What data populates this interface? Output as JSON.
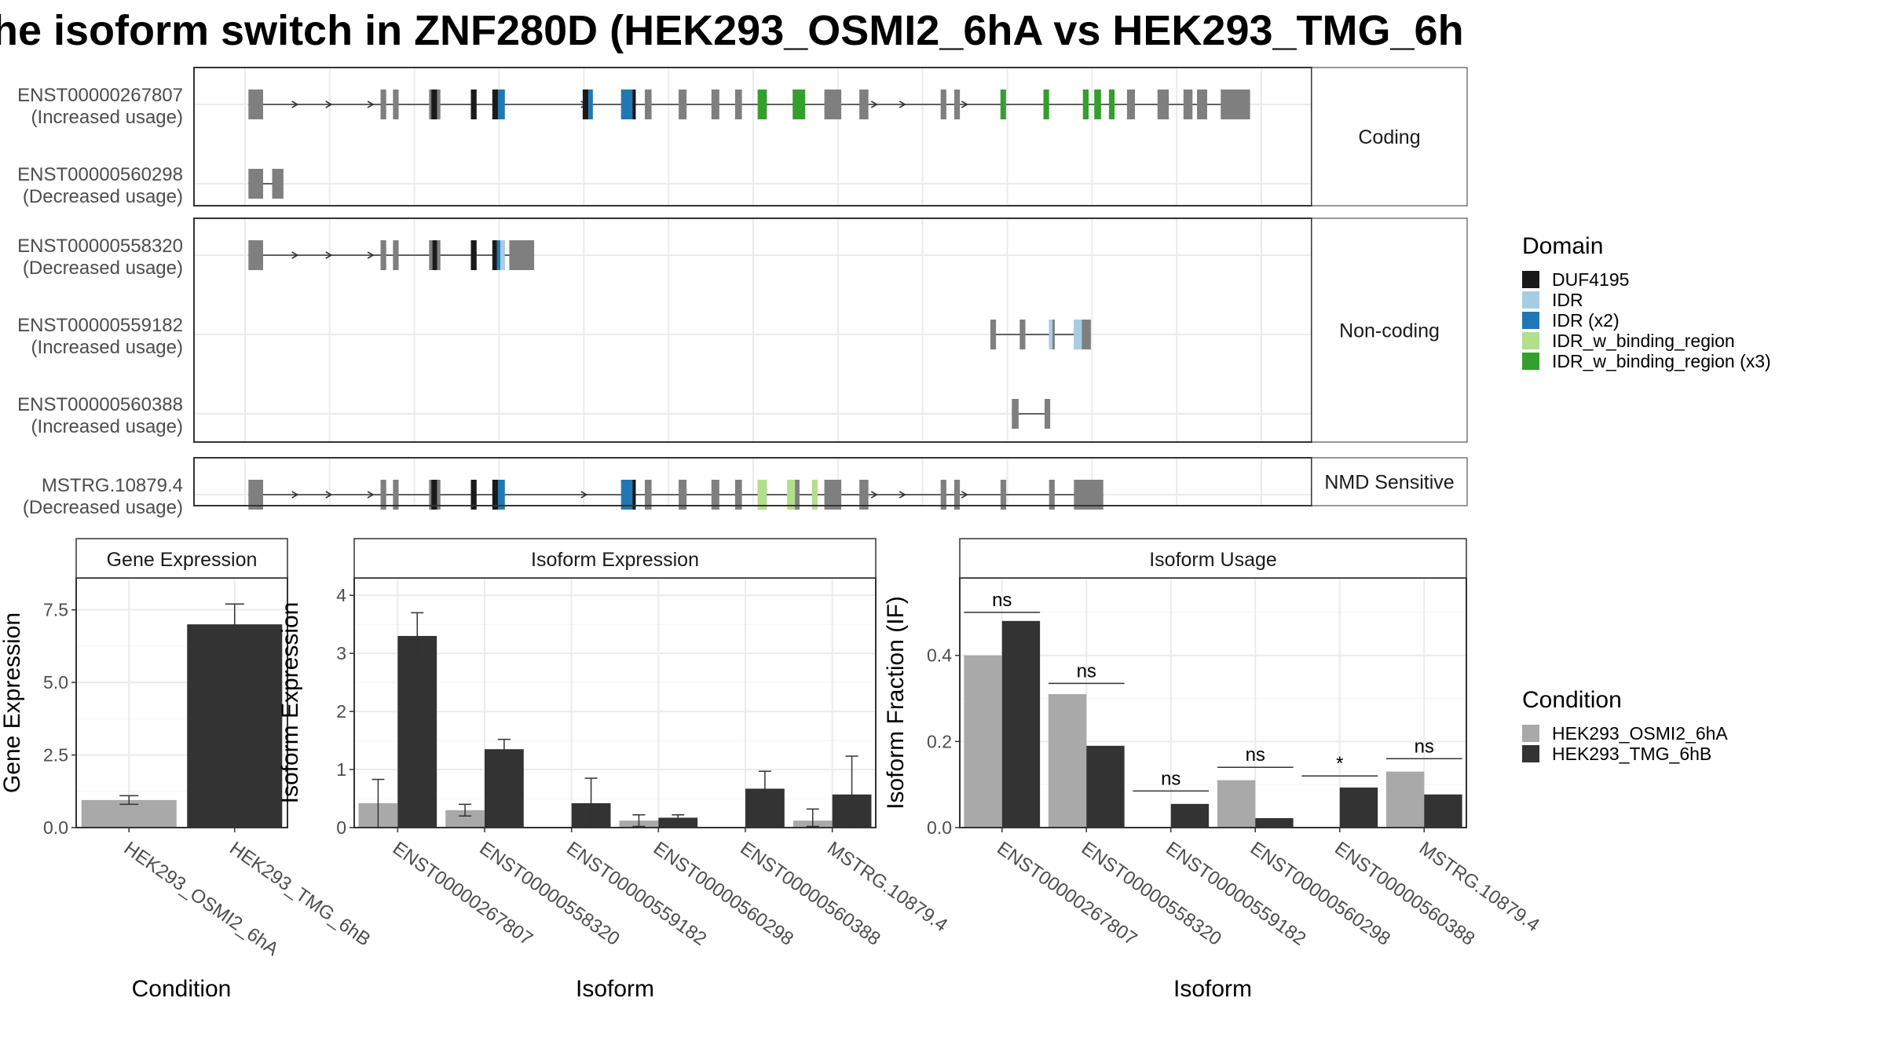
{
  "title": "he isoform switch in ZNF280D (HEK293_OSMI2_6hA vs HEK293_TMG_6h",
  "colors": {
    "exon": "#7f7f7f",
    "DUF4195": "#1a1a1a",
    "IDR": "#a6cee3",
    "IDR_x2": "#1f78b4",
    "IDR_w_binding_region": "#b2df8a",
    "IDR_w_binding_region_x3": "#33a02c",
    "osmi": "#a9a9a9",
    "tmg": "#333333"
  },
  "isoform_panels": [
    {
      "label": "Coding",
      "isoforms": [
        {
          "id": "ENST00000267807",
          "usage": "(Increased usage)",
          "exons": [
            [
              0.3,
              1.6,
              0
            ],
            [
              12.0,
              12.5,
              0
            ],
            [
              13.1,
              13.6,
              0
            ],
            [
              16.3,
              17.3,
              0
            ],
            [
              20.0,
              20.5,
              0
            ],
            [
              21.9,
              23.0,
              0
            ],
            [
              33.3,
              34.3,
              0
            ],
            [
              35.4,
              36.0,
              0
            ],
            [
              38.4,
              39.1,
              0
            ],
            [
              41.3,
              42.0,
              0
            ],
            [
              43.4,
              44.0,
              0
            ],
            [
              45.4,
              46.2,
              0
            ],
            [
              48.5,
              49.1,
              0
            ],
            [
              51.3,
              52.8,
              0
            ],
            [
              54.4,
              55.2,
              0
            ],
            [
              61.6,
              62.1,
              0
            ],
            [
              62.8,
              63.3,
              0
            ],
            [
              66.9,
              67.4,
              0
            ],
            [
              74.2,
              74.7,
              0
            ],
            [
              78.1,
              78.8,
              0
            ],
            [
              80.8,
              81.8,
              0
            ],
            [
              83.1,
              83.9,
              0
            ],
            [
              84.3,
              85.2,
              0
            ],
            [
              86.4,
              89.0,
              0
            ]
          ],
          "domains": [
            [
              16.5,
              17.0,
              "DUF4195"
            ],
            [
              20.0,
              20.5,
              "DUF4195"
            ],
            [
              21.9,
              22.4,
              "DUF4195"
            ],
            [
              22.4,
              23.0,
              "IDR_x2"
            ],
            [
              29.9,
              30.4,
              "DUF4195"
            ],
            [
              30.4,
              30.8,
              "IDR_x2"
            ],
            [
              34.3,
              34.6,
              "DUF4195"
            ],
            [
              33.3,
              34.3,
              "IDR_x2"
            ],
            [
              45.4,
              46.2,
              "IDR_w_binding_region_x3"
            ],
            [
              48.5,
              49.6,
              "IDR_w_binding_region_x3"
            ],
            [
              66.9,
              67.3,
              "IDR_w_binding_region_x3"
            ],
            [
              70.7,
              71.2,
              "IDR_w_binding_region_x3"
            ],
            [
              74.2,
              74.7,
              "IDR_w_binding_region_x3"
            ],
            [
              75.2,
              75.8,
              "IDR_w_binding_region_x3"
            ],
            [
              76.5,
              77.0,
              "IDR_w_binding_region_x3"
            ]
          ],
          "arrows": [
            4.5,
            7.5,
            11.2,
            30.1,
            55.8,
            58.3,
            63.8
          ]
        },
        {
          "id": "ENST00000560298",
          "usage": "(Decreased usage)",
          "exons": [
            [
              0.3,
              1.6,
              0
            ],
            [
              2.4,
              3.4,
              0
            ]
          ],
          "domains": [],
          "arrows": []
        }
      ]
    },
    {
      "label": "Non-coding",
      "isoforms": [
        {
          "id": "ENST00000558320",
          "usage": "(Decreased usage)",
          "exons": [
            [
              0.3,
              1.6,
              0
            ],
            [
              12.0,
              12.5,
              0
            ],
            [
              13.1,
              13.6,
              0
            ],
            [
              16.3,
              17.3,
              0
            ],
            [
              20.0,
              20.5,
              0
            ],
            [
              21.9,
              23.0,
              0
            ],
            [
              23.4,
              25.6,
              0
            ]
          ],
          "domains": [
            [
              16.6,
              17.0,
              "DUF4195"
            ],
            [
              20.0,
              20.5,
              "DUF4195"
            ],
            [
              21.9,
              22.3,
              "DUF4195"
            ],
            [
              22.3,
              22.6,
              "IDR_x2"
            ],
            [
              22.6,
              23.0,
              "IDR"
            ]
          ],
          "arrows": [
            4.5,
            7.5,
            11.2
          ]
        },
        {
          "id": "ENST00000559182",
          "usage": "(Increased usage)",
          "exons": [
            [
              66.0,
              66.5,
              0
            ],
            [
              68.6,
              69.1,
              0
            ],
            [
              71.2,
              71.7,
              0
            ],
            [
              73.4,
              74.9,
              0
            ]
          ],
          "domains": [
            [
              71.2,
              71.5,
              "IDR"
            ],
            [
              73.4,
              74.1,
              "IDR"
            ]
          ],
          "arrows": []
        },
        {
          "id": "ENST00000560388",
          "usage": "(Increased usage)",
          "exons": [
            [
              67.9,
              68.5,
              0
            ],
            [
              70.8,
              71.3,
              0
            ]
          ],
          "domains": [],
          "arrows": []
        }
      ]
    },
    {
      "label": "NMD Sensitive",
      "isoforms": [
        {
          "id": "MSTRG.10879.4",
          "usage": "(Decreased usage)",
          "exons": [
            [
              0.3,
              1.6,
              0
            ],
            [
              12.0,
              12.5,
              0
            ],
            [
              13.1,
              13.6,
              0
            ],
            [
              16.3,
              17.3,
              0
            ],
            [
              20.0,
              20.5,
              0
            ],
            [
              21.9,
              23.0,
              0
            ],
            [
              33.3,
              34.3,
              0
            ],
            [
              35.4,
              36.0,
              0
            ],
            [
              38.4,
              39.1,
              0
            ],
            [
              41.3,
              42.0,
              0
            ],
            [
              43.4,
              44.0,
              0
            ],
            [
              45.4,
              46.2,
              0
            ],
            [
              48.5,
              49.1,
              0
            ],
            [
              51.3,
              52.8,
              0
            ],
            [
              54.4,
              55.2,
              0
            ],
            [
              61.6,
              62.1,
              0
            ],
            [
              62.8,
              63.3,
              0
            ],
            [
              66.9,
              67.4,
              0
            ],
            [
              71.2,
              71.7,
              0
            ],
            [
              73.4,
              76.0,
              0
            ]
          ],
          "domains": [
            [
              16.5,
              17.0,
              "DUF4195"
            ],
            [
              20.0,
              20.5,
              "DUF4195"
            ],
            [
              21.9,
              22.4,
              "DUF4195"
            ],
            [
              22.4,
              23.0,
              "IDR_x2"
            ],
            [
              34.3,
              34.6,
              "DUF4195"
            ],
            [
              33.3,
              34.3,
              "IDR_x2"
            ],
            [
              45.4,
              46.2,
              "IDR_w_binding_region"
            ],
            [
              48.0,
              48.7,
              "IDR_w_binding_region"
            ],
            [
              50.2,
              50.7,
              "IDR_w_binding_region"
            ]
          ],
          "arrows": [
            4.5,
            7.5,
            11.2,
            30.1,
            55.8,
            58.3,
            63.8
          ]
        }
      ]
    }
  ],
  "legend_domain": {
    "title": "Domain",
    "items": [
      {
        "label": "DUF4195",
        "key": "DUF4195"
      },
      {
        "label": "IDR",
        "key": "IDR"
      },
      {
        "label": "IDR (x2)",
        "key": "IDR_x2"
      },
      {
        "label": "IDR_w_binding_region",
        "key": "IDR_w_binding_region"
      },
      {
        "label": "IDR_w_binding_region (x3)",
        "key": "IDR_w_binding_region_x3"
      }
    ]
  },
  "legend_condition": {
    "title": "Condition",
    "items": [
      {
        "label": "HEK293_OSMI2_6hA",
        "key": "osmi"
      },
      {
        "label": "HEK293_TMG_6hB",
        "key": "tmg"
      }
    ]
  },
  "chart_data": [
    {
      "type": "bar",
      "title": "Gene Expression",
      "xlabel": "Condition",
      "ylabel": "Gene Expression",
      "ylim": [
        0,
        8.6
      ],
      "yticks": [
        0.0,
        2.5,
        5.0,
        7.5
      ],
      "ytick_labels": [
        "0.0",
        "2.5",
        "5.0",
        "7.5"
      ],
      "categories": [
        "HEK293_OSMI2_6hA",
        "HEK293_TMG_6hB"
      ],
      "values": [
        0.95,
        7.0
      ],
      "errors": [
        [
          0.8,
          1.1
        ],
        [
          6.3,
          7.7
        ]
      ]
    },
    {
      "type": "bar",
      "title": "Isoform Expression",
      "xlabel": "Isoform",
      "ylabel": "Isoform Expression",
      "ylim": [
        0,
        4.3
      ],
      "yticks": [
        0,
        1,
        2,
        3,
        4
      ],
      "ytick_labels": [
        "0",
        "1",
        "2",
        "3",
        "4"
      ],
      "categories": [
        "ENST00000267807",
        "ENST00000558320",
        "ENST00000559182",
        "ENST00000560298",
        "ENST00000560388",
        "MSTRG.10879.4"
      ],
      "series": [
        {
          "name": "HEK293_OSMI2_6hA",
          "key": "osmi",
          "values": [
            0.42,
            0.3,
            0.0,
            0.12,
            0.0,
            0.12
          ],
          "errors": [
            [
              0.0,
              0.83
            ],
            [
              0.2,
              0.4
            ],
            [
              0,
              0
            ],
            [
              0.02,
              0.22
            ],
            [
              0,
              0
            ],
            [
              0.02,
              0.32
            ]
          ]
        },
        {
          "name": "HEK293_TMG_6hB",
          "key": "tmg",
          "values": [
            3.3,
            1.35,
            0.42,
            0.17,
            0.67,
            0.57
          ],
          "errors": [
            [
              2.9,
              3.7
            ],
            [
              1.18,
              1.52
            ],
            [
              0.0,
              0.85
            ],
            [
              0.12,
              0.22
            ],
            [
              0.37,
              0.97
            ],
            [
              0.0,
              1.23
            ]
          ]
        }
      ]
    },
    {
      "type": "bar",
      "title": "Isoform Usage",
      "xlabel": "Isoform",
      "ylabel": "Isoform Fraction (IF)",
      "ylim": [
        0,
        0.58
      ],
      "yticks": [
        0.0,
        0.2,
        0.4
      ],
      "ytick_labels": [
        "0.0",
        "0.2",
        "0.4"
      ],
      "categories": [
        "ENST00000267807",
        "ENST00000558320",
        "ENST00000559182",
        "ENST00000560298",
        "ENST00000560388",
        "MSTRG.10879.4"
      ],
      "series": [
        {
          "name": "HEK293_OSMI2_6hA",
          "key": "osmi",
          "values": [
            0.4,
            0.31,
            0.0,
            0.11,
            0.0,
            0.13
          ]
        },
        {
          "name": "HEK293_TMG_6hB",
          "key": "tmg",
          "values": [
            0.48,
            0.19,
            0.055,
            0.022,
            0.093,
            0.077
          ]
        }
      ],
      "significance": [
        {
          "label": "ns",
          "y": 0.5
        },
        {
          "label": "ns",
          "y": 0.335
        },
        {
          "label": "ns",
          "y": 0.085
        },
        {
          "label": "ns",
          "y": 0.14
        },
        {
          "label": "*",
          "y": 0.12
        },
        {
          "label": "ns",
          "y": 0.16
        }
      ]
    }
  ]
}
